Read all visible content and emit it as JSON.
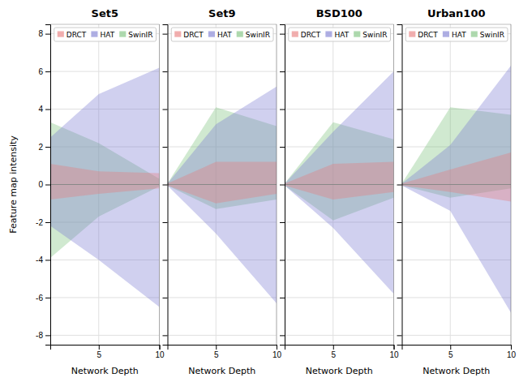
{
  "chart_data": [
    {
      "type": "area",
      "title": "Set5",
      "xlabel": "Network Depth",
      "ylabel": "Feature map intensity",
      "x": [
        1,
        5,
        10
      ],
      "xlim": [
        1,
        10
      ],
      "xticks": [
        5,
        10
      ],
      "ylim": [
        -8.5,
        8.5
      ],
      "yticks": [
        -8,
        -6,
        -4,
        -2,
        0,
        2,
        4,
        6,
        8
      ],
      "grid": true,
      "legend": "upper right",
      "hline": 0,
      "series": [
        {
          "name": "DRCT",
          "color": "#e87878",
          "upper": [
            1.1,
            0.7,
            0.6
          ],
          "lower": [
            -0.8,
            -0.5,
            -0.2
          ]
        },
        {
          "name": "HAT",
          "color": "#7878d0",
          "upper": [
            2.5,
            4.8,
            6.2
          ],
          "lower": [
            -2.2,
            -4.0,
            -6.5
          ]
        },
        {
          "name": "SwinIR",
          "color": "#78c078",
          "upper": [
            3.3,
            2.2,
            0.3
          ],
          "lower": [
            -3.9,
            -1.7,
            -0.1
          ]
        }
      ]
    },
    {
      "type": "area",
      "title": "Set9",
      "xlabel": "Network Depth",
      "x": [
        1,
        5,
        10
      ],
      "xlim": [
        1,
        10
      ],
      "xticks": [
        5,
        10
      ],
      "ylim": [
        -8.5,
        8.5
      ],
      "yticks": [
        -8,
        -6,
        -4,
        -2,
        0,
        2,
        4,
        6,
        8
      ],
      "grid": true,
      "legend": "upper right",
      "tick_labels": "x",
      "hline": 0,
      "series": [
        {
          "name": "DRCT",
          "color": "#e87878",
          "upper": [
            0.05,
            1.2,
            1.2
          ],
          "lower": [
            -0.05,
            -1.0,
            -0.5
          ]
        },
        {
          "name": "HAT",
          "color": "#7878d0",
          "upper": [
            0.05,
            3.2,
            5.2
          ],
          "lower": [
            -0.05,
            -2.6,
            -6.3
          ]
        },
        {
          "name": "SwinIR",
          "color": "#78c078",
          "upper": [
            0.05,
            4.1,
            3.1
          ],
          "lower": [
            -0.05,
            -1.3,
            -0.8
          ]
        }
      ]
    },
    {
      "type": "area",
      "title": "BSD100",
      "xlabel": "Network Depth",
      "x": [
        1,
        5,
        10
      ],
      "xlim": [
        1,
        10
      ],
      "xticks": [
        5,
        10
      ],
      "ylim": [
        -8.5,
        8.5
      ],
      "yticks": [
        -8,
        -6,
        -4,
        -2,
        0,
        2,
        4,
        6,
        8
      ],
      "grid": true,
      "legend": "upper right",
      "tick_labels": "x",
      "hline": 0,
      "series": [
        {
          "name": "DRCT",
          "color": "#e87878",
          "upper": [
            0.05,
            1.1,
            1.2
          ],
          "lower": [
            -0.05,
            -0.8,
            -0.4
          ]
        },
        {
          "name": "HAT",
          "color": "#7878d0",
          "upper": [
            0.05,
            2.8,
            6.0
          ],
          "lower": [
            -0.05,
            -2.3,
            -5.8
          ]
        },
        {
          "name": "SwinIR",
          "color": "#78c078",
          "upper": [
            0.05,
            3.3,
            2.4
          ],
          "lower": [
            -0.05,
            -1.9,
            -0.7
          ]
        }
      ]
    },
    {
      "type": "area",
      "title": "Urban100",
      "xlabel": "Network Depth",
      "x": [
        1,
        5,
        10
      ],
      "xlim": [
        1,
        10
      ],
      "xticks": [
        5,
        10
      ],
      "ylim": [
        -8.5,
        8.5
      ],
      "yticks": [
        -8,
        -6,
        -4,
        -2,
        0,
        2,
        4,
        6,
        8
      ],
      "grid": true,
      "legend": "upper right",
      "tick_labels": "x",
      "hline": 0,
      "series": [
        {
          "name": "DRCT",
          "color": "#e87878",
          "upper": [
            0.05,
            0.8,
            1.7
          ],
          "lower": [
            -0.05,
            -0.4,
            -0.9
          ]
        },
        {
          "name": "HAT",
          "color": "#7878d0",
          "upper": [
            0.05,
            2.1,
            6.3
          ],
          "lower": [
            -0.05,
            -1.4,
            -6.8
          ]
        },
        {
          "name": "SwinIR",
          "color": "#78c078",
          "upper": [
            0.05,
            4.1,
            3.7
          ],
          "lower": [
            -0.05,
            -0.7,
            -0.2
          ]
        }
      ]
    }
  ]
}
